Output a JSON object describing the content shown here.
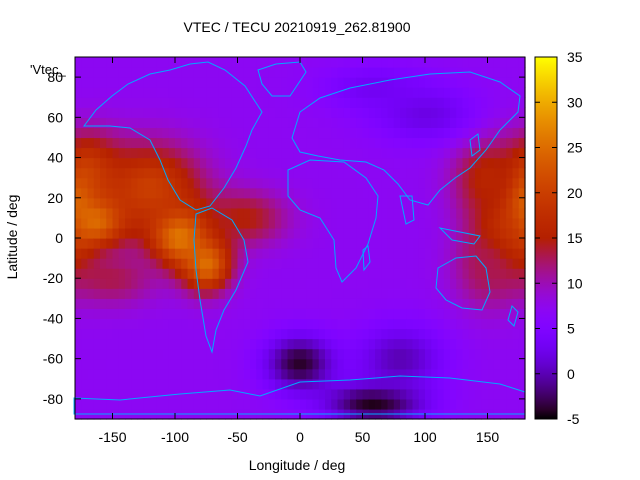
{
  "chart_data": {
    "type": "heatmap",
    "title": "VTEC / TECU 20210919_262.81900",
    "xlabel": "Longitude / deg",
    "ylabel": "Latitude / deg",
    "key_label": "'Vtec_",
    "xlim": [
      -180,
      180
    ],
    "ylim": [
      -90,
      90
    ],
    "zlim": [
      -5,
      35
    ],
    "x_ticks": [
      -150,
      -100,
      -50,
      0,
      50,
      100,
      150
    ],
    "y_ticks": [
      -80,
      -60,
      -40,
      -20,
      0,
      20,
      40,
      60,
      80
    ],
    "colorbar_ticks": [
      -5,
      0,
      5,
      10,
      15,
      20,
      25,
      30,
      35
    ],
    "grid": false,
    "colorbar": "right",
    "palette": "gnuplot black-blue-purple-red-orange-yellow",
    "features": [
      {
        "lon": -165,
        "lat": 10,
        "value": 30,
        "sx": 18,
        "sy": 10
      },
      {
        "lon": -95,
        "lat": 2,
        "value": 30,
        "sx": 18,
        "sy": 11
      },
      {
        "lon": -75,
        "lat": -12,
        "value": 26,
        "sx": 14,
        "sy": 10
      },
      {
        "lon": -170,
        "lat": 32,
        "value": 20,
        "sx": 18,
        "sy": 14
      },
      {
        "lon": -120,
        "lat": 25,
        "value": 20,
        "sx": 30,
        "sy": 16
      },
      {
        "lon": -45,
        "lat": 10,
        "value": 15,
        "sx": 25,
        "sy": 10
      },
      {
        "lon": -150,
        "lat": -20,
        "value": 13,
        "sx": 26,
        "sy": 10
      },
      {
        "lon": 177,
        "lat": 15,
        "value": 30,
        "sx": 10,
        "sy": 12
      },
      {
        "lon": 165,
        "lat": 2,
        "value": 22,
        "sx": 18,
        "sy": 14
      },
      {
        "lon": 150,
        "lat": 30,
        "value": 16,
        "sx": 20,
        "sy": 15
      },
      {
        "lon": 150,
        "lat": -15,
        "value": 13,
        "sx": 20,
        "sy": 15
      },
      {
        "lon": 0,
        "lat": -62,
        "value": -4,
        "sx": 20,
        "sy": 10
      },
      {
        "lon": 60,
        "lat": -82,
        "value": -5,
        "sx": 28,
        "sy": 7
      },
      {
        "lon": 80,
        "lat": -60,
        "value": 0,
        "sx": 25,
        "sy": 12
      },
      {
        "lon": 100,
        "lat": 62,
        "value": 2,
        "sx": 30,
        "sy": 10
      },
      {
        "lon": 60,
        "lat": 75,
        "value": 3,
        "sx": 30,
        "sy": 8
      }
    ],
    "base_value": 7
  }
}
